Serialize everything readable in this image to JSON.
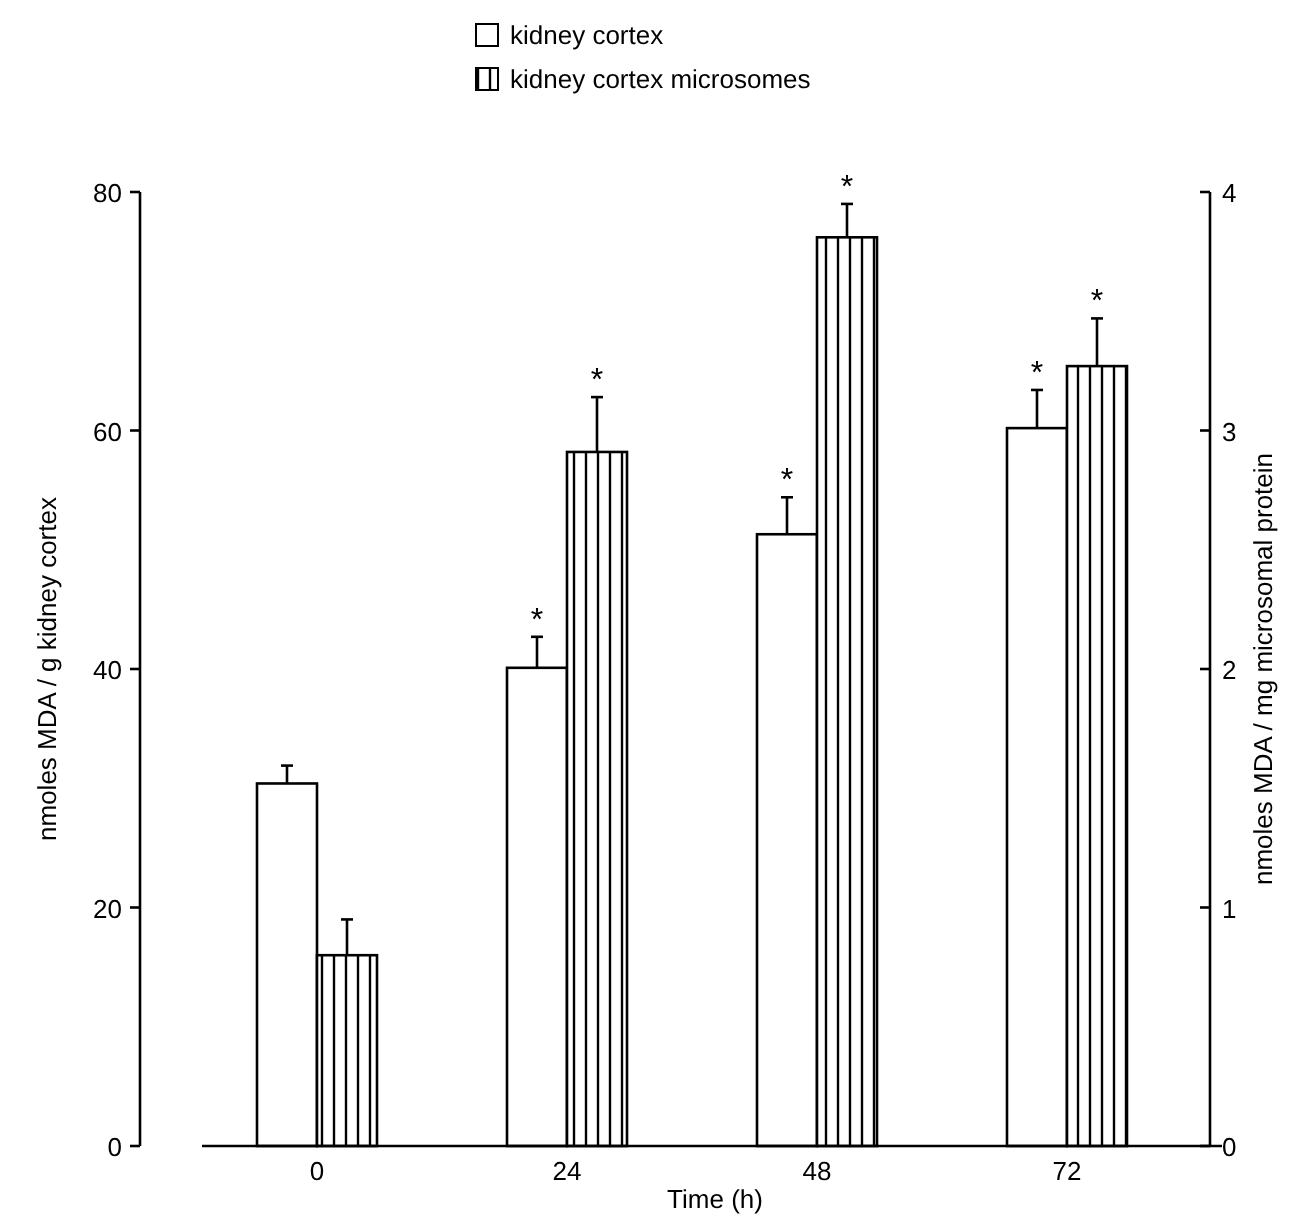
{
  "chart_data": {
    "type": "bar",
    "xlabel": "Time (h)",
    "ylabel": "nmoles MDA / g kidney cortex",
    "y2label": "nmoles MDA / mg microsomal protein",
    "categories": [
      "0",
      "24",
      "48",
      "72"
    ],
    "series": [
      {
        "name": "kidney cortex",
        "color": "#ffffff",
        "values": [
          30.4,
          40.1,
          51.3,
          60.2
        ],
        "errors": [
          1.5,
          2.6,
          3.1,
          3.2
        ]
      },
      {
        "name": "kidney cortex microsomes",
        "color": "#000000",
        "axis": "y2",
        "values": [
          0.8,
          2.91,
          3.81,
          3.27
        ],
        "errors": [
          0.15,
          0.23,
          0.14,
          0.2
        ]
      }
    ],
    "ylim": [
      0,
      80
    ],
    "yticks": [
      0,
      20,
      40,
      60,
      80
    ],
    "y2lim": [
      0,
      4
    ],
    "y2ticks": [
      0,
      1,
      2,
      3,
      4
    ],
    "legend": "top",
    "grid": false,
    "annotations": [
      "*",
      "*",
      "*",
      "*",
      "*",
      "*"
    ]
  }
}
